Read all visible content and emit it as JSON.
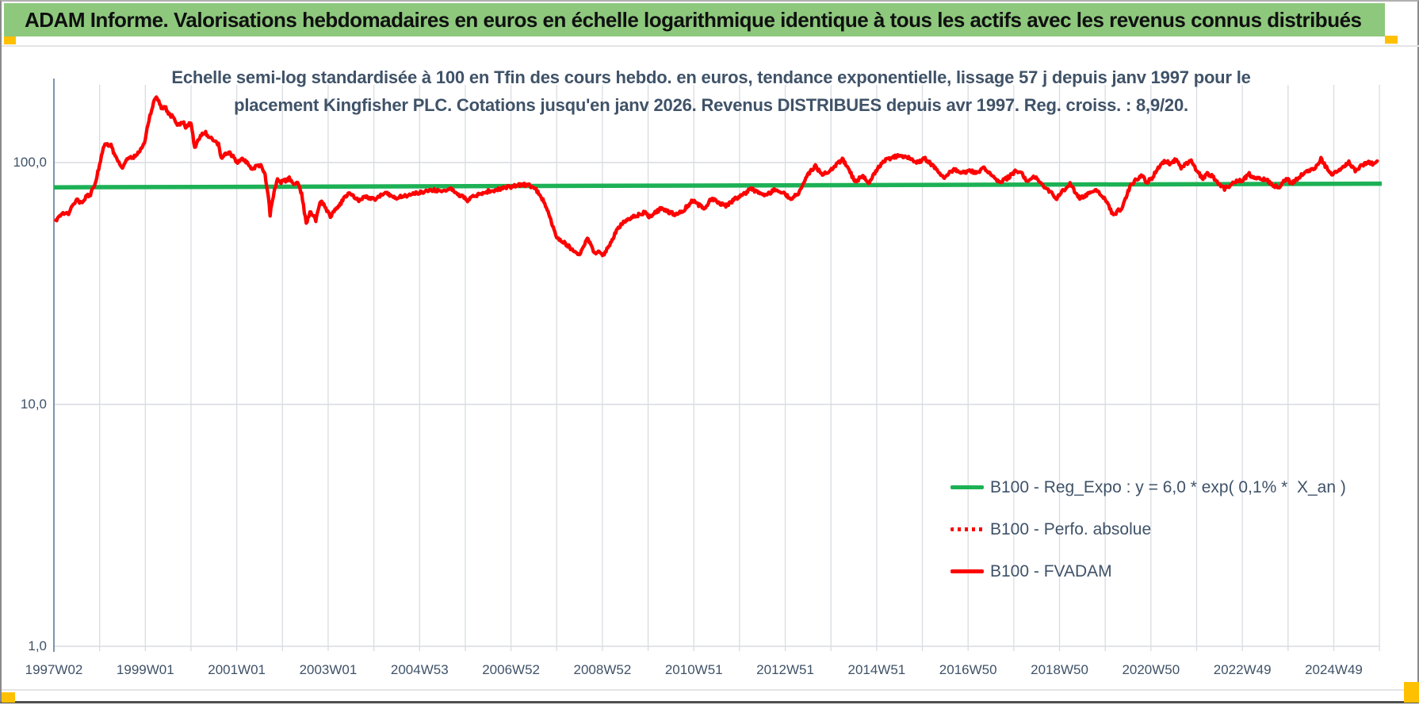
{
  "header": {
    "title": "ADAM Informe. Valorisations hebdomadaires en euros en échelle logarithmique identique à tous les actifs avec les revenus connus distribués"
  },
  "colors": {
    "header_background": "#8dc87d",
    "corner_marker_yellow": "#ffc000",
    "trend_line_green": "#1cb155",
    "series_red": "#fe0000",
    "text_dark_blue": "#3f5268",
    "gridline_gray": "#d8dce2",
    "axis_line_blue_gray": "#7e94ae"
  },
  "chart_data": {
    "type": "line",
    "title": "Echelle semi-log standardisée à 100 en Tfin des cours hebdo. en euros, tendance exponentielle, lissage 57 j depuis janv 1997 pour le placement Kingfisher PLC. Cotations jusqu'en janv 2026. Revenus DISTRIBUES depuis avr 1997. Reg. croiss. : 8,9/20.",
    "title_lines": [
      "Echelle semi-log standardisée à 100 en Tfin des cours hebdo. en euros, tendance exponentielle, lissage 57 j depuis janv 1997 pour le",
      "placement Kingfisher PLC. Cotations jusqu'en janv 2026. Revenus DISTRIBUES depuis avr 1997. Reg. croiss. : 8,9/20."
    ],
    "xlabel": "",
    "ylabel": "",
    "x_tick_labels": [
      "1997W02",
      "1999W01",
      "2001W01",
      "2003W01",
      "2004W53",
      "2006W52",
      "2008W52",
      "2010W51",
      "2012W51",
      "2014W51",
      "2016W50",
      "2018W50",
      "2020W50",
      "2022W49",
      "2024W49"
    ],
    "y_tick_labels": [
      "100,0",
      "10,0",
      "1,0"
    ],
    "x_axis": {
      "start_year": 1997,
      "end_year": 2026,
      "gridline_every_years": 1,
      "tick_label_every_years": 2
    },
    "y_axis": {
      "scale": "log10",
      "min": 1,
      "max": 209,
      "gridlines": [
        100,
        10,
        1
      ]
    },
    "grid": "on",
    "legend_position": "lower-right-inside",
    "legend": [
      {
        "label": "B100 - Reg_Expo : y = 6,0 * exp( 0,1% *  X_an )",
        "color": "#1cb155",
        "style": "solid"
      },
      {
        "label": "B100 - Perfo. absolue",
        "color": "#fe0000",
        "style": "dotted"
      },
      {
        "label": "B100 - FVADAM",
        "color": "#fe0000",
        "style": "solid"
      }
    ],
    "series": [
      {
        "name": "B100 - Reg_Expo",
        "color": "#1cb155",
        "style": "solid",
        "points": [
          [
            1997.0,
            79.0
          ],
          [
            2026.05,
            81.8
          ]
        ]
      },
      {
        "name": "B100 - Perfo. absolue",
        "color": "#fe0000",
        "style": "dotted",
        "note": "visually coincident with B100 - FVADAM series",
        "points": []
      },
      {
        "name": "B100 - FVADAM",
        "color": "#fe0000",
        "style": "solid",
        "points": [
          [
            1997.04,
            57
          ],
          [
            1997.12,
            60
          ],
          [
            1997.2,
            62
          ],
          [
            1997.3,
            61
          ],
          [
            1997.42,
            67
          ],
          [
            1997.5,
            70
          ],
          [
            1997.6,
            68
          ],
          [
            1997.7,
            72
          ],
          [
            1997.8,
            74
          ],
          [
            1997.9,
            82
          ],
          [
            1998.0,
            98
          ],
          [
            1998.08,
            116
          ],
          [
            1998.15,
            119
          ],
          [
            1998.25,
            118
          ],
          [
            1998.32,
            108
          ],
          [
            1998.4,
            101
          ],
          [
            1998.5,
            94
          ],
          [
            1998.58,
            103
          ],
          [
            1998.68,
            105
          ],
          [
            1998.78,
            106
          ],
          [
            1998.88,
            112
          ],
          [
            1998.98,
            120
          ],
          [
            1999.08,
            150
          ],
          [
            1999.18,
            178
          ],
          [
            1999.26,
            187
          ],
          [
            1999.35,
            168
          ],
          [
            1999.43,
            170
          ],
          [
            1999.52,
            158
          ],
          [
            1999.6,
            155
          ],
          [
            1999.7,
            142
          ],
          [
            1999.82,
            147
          ],
          [
            1999.9,
            139
          ],
          [
            2000.0,
            147
          ],
          [
            2000.08,
            114
          ],
          [
            2000.17,
            126
          ],
          [
            2000.3,
            134
          ],
          [
            2000.42,
            127
          ],
          [
            2000.52,
            124
          ],
          [
            2000.6,
            119
          ],
          [
            2000.66,
            104
          ],
          [
            2000.75,
            108
          ],
          [
            2000.85,
            109
          ],
          [
            2000.92,
            106
          ],
          [
            2001.0,
            99
          ],
          [
            2001.1,
            105
          ],
          [
            2001.2,
            101
          ],
          [
            2001.33,
            93
          ],
          [
            2001.45,
            98
          ],
          [
            2001.55,
            96
          ],
          [
            2001.62,
            89
          ],
          [
            2001.69,
            73
          ],
          [
            2001.73,
            61
          ],
          [
            2001.8,
            73
          ],
          [
            2001.89,
            85
          ],
          [
            2001.95,
            83
          ],
          [
            2002.05,
            84
          ],
          [
            2002.15,
            86
          ],
          [
            2002.25,
            81
          ],
          [
            2002.33,
            84
          ],
          [
            2002.42,
            74
          ],
          [
            2002.52,
            56
          ],
          [
            2002.62,
            63
          ],
          [
            2002.73,
            58
          ],
          [
            2002.84,
            70
          ],
          [
            2002.95,
            64
          ],
          [
            2003.05,
            60
          ],
          [
            2003.17,
            64
          ],
          [
            2003.3,
            69
          ],
          [
            2003.47,
            76
          ],
          [
            2003.57,
            72
          ],
          [
            2003.67,
            69
          ],
          [
            2003.8,
            73
          ],
          [
            2003.95,
            71
          ],
          [
            2004.05,
            71
          ],
          [
            2004.25,
            75
          ],
          [
            2004.5,
            71.5
          ],
          [
            2004.7,
            73
          ],
          [
            2004.9,
            74.5
          ],
          [
            2005.1,
            76
          ],
          [
            2005.3,
            77
          ],
          [
            2005.5,
            76.5
          ],
          [
            2005.67,
            78
          ],
          [
            2005.85,
            74
          ],
          [
            2006.05,
            70
          ],
          [
            2006.25,
            73.5
          ],
          [
            2006.5,
            76
          ],
          [
            2006.8,
            78
          ],
          [
            2007.0,
            79.5
          ],
          [
            2007.25,
            81
          ],
          [
            2007.4,
            80.5
          ],
          [
            2007.55,
            77
          ],
          [
            2007.7,
            70
          ],
          [
            2007.85,
            60
          ],
          [
            2008.0,
            48.5
          ],
          [
            2008.15,
            47
          ],
          [
            2008.32,
            44
          ],
          [
            2008.5,
            41
          ],
          [
            2008.67,
            49
          ],
          [
            2008.84,
            42
          ],
          [
            2008.93,
            43.5
          ],
          [
            2009.02,
            41.5
          ],
          [
            2009.14,
            45
          ],
          [
            2009.31,
            52.5
          ],
          [
            2009.48,
            57
          ],
          [
            2009.66,
            60
          ],
          [
            2009.83,
            61
          ],
          [
            2009.92,
            62.5
          ],
          [
            2010.02,
            59.5
          ],
          [
            2010.28,
            64.5
          ],
          [
            2010.58,
            61
          ],
          [
            2010.75,
            63
          ],
          [
            2010.97,
            69.5
          ],
          [
            2011.22,
            64.5
          ],
          [
            2011.39,
            71
          ],
          [
            2011.56,
            68
          ],
          [
            2011.7,
            66
          ],
          [
            2011.91,
            71
          ],
          [
            2012.08,
            73.5
          ],
          [
            2012.25,
            78
          ],
          [
            2012.43,
            75
          ],
          [
            2012.6,
            73.5
          ],
          [
            2012.77,
            77
          ],
          [
            2012.95,
            75
          ],
          [
            2013.12,
            71
          ],
          [
            2013.29,
            75
          ],
          [
            2013.47,
            88.5
          ],
          [
            2013.66,
            96.5
          ],
          [
            2013.81,
            88.5
          ],
          [
            2013.99,
            93
          ],
          [
            2014.25,
            103
          ],
          [
            2014.38,
            95.5
          ],
          [
            2014.52,
            83
          ],
          [
            2014.7,
            88.5
          ],
          [
            2014.82,
            82
          ],
          [
            2015.0,
            93
          ],
          [
            2015.16,
            101.5
          ],
          [
            2015.48,
            107
          ],
          [
            2015.72,
            104
          ],
          [
            2015.89,
            100
          ],
          [
            2016.06,
            104
          ],
          [
            2016.32,
            93
          ],
          [
            2016.46,
            86.5
          ],
          [
            2016.69,
            94
          ],
          [
            2016.84,
            90.5
          ],
          [
            2017.03,
            92.5
          ],
          [
            2017.21,
            90.5
          ],
          [
            2017.33,
            95.5
          ],
          [
            2017.5,
            89.5
          ],
          [
            2017.67,
            83
          ],
          [
            2017.85,
            86
          ],
          [
            2018.05,
            92.5
          ],
          [
            2018.19,
            89.5
          ],
          [
            2018.28,
            83
          ],
          [
            2018.45,
            87.5
          ],
          [
            2018.59,
            82
          ],
          [
            2018.71,
            78
          ],
          [
            2018.85,
            74
          ],
          [
            2018.94,
            71
          ],
          [
            2019.09,
            77
          ],
          [
            2019.23,
            82
          ],
          [
            2019.37,
            74
          ],
          [
            2019.46,
            71
          ],
          [
            2019.61,
            74
          ],
          [
            2019.72,
            76
          ],
          [
            2019.8,
            78
          ],
          [
            2019.92,
            73.5
          ],
          [
            2020.04,
            68.5
          ],
          [
            2020.18,
            60
          ],
          [
            2020.27,
            63
          ],
          [
            2020.36,
            64.5
          ],
          [
            2020.56,
            81
          ],
          [
            2020.7,
            85.5
          ],
          [
            2020.79,
            88.5
          ],
          [
            2020.91,
            83
          ],
          [
            2021.02,
            86
          ],
          [
            2021.14,
            94
          ],
          [
            2021.31,
            101.5
          ],
          [
            2021.43,
            99
          ],
          [
            2021.54,
            103
          ],
          [
            2021.66,
            95.5
          ],
          [
            2021.78,
            99
          ],
          [
            2021.88,
            101.5
          ],
          [
            2022.0,
            93
          ],
          [
            2022.12,
            86
          ],
          [
            2022.23,
            89.5
          ],
          [
            2022.35,
            87.5
          ],
          [
            2022.47,
            82
          ],
          [
            2022.61,
            78
          ],
          [
            2022.75,
            81
          ],
          [
            2022.87,
            84
          ],
          [
            2023.0,
            84
          ],
          [
            2023.15,
            89.5
          ],
          [
            2023.27,
            86
          ],
          [
            2023.51,
            85.5
          ],
          [
            2023.65,
            81
          ],
          [
            2023.79,
            79
          ],
          [
            2023.96,
            86
          ],
          [
            2024.08,
            82
          ],
          [
            2024.2,
            85.5
          ],
          [
            2024.31,
            89.5
          ],
          [
            2024.43,
            92.5
          ],
          [
            2024.6,
            95.5
          ],
          [
            2024.72,
            104
          ],
          [
            2024.83,
            95.5
          ],
          [
            2024.98,
            89.5
          ],
          [
            2025.12,
            92.5
          ],
          [
            2025.33,
            100
          ],
          [
            2025.47,
            92.5
          ],
          [
            2025.59,
            96.5
          ],
          [
            2025.76,
            100
          ],
          [
            2025.85,
            99
          ],
          [
            2025.95,
            101.5
          ]
        ]
      }
    ]
  }
}
